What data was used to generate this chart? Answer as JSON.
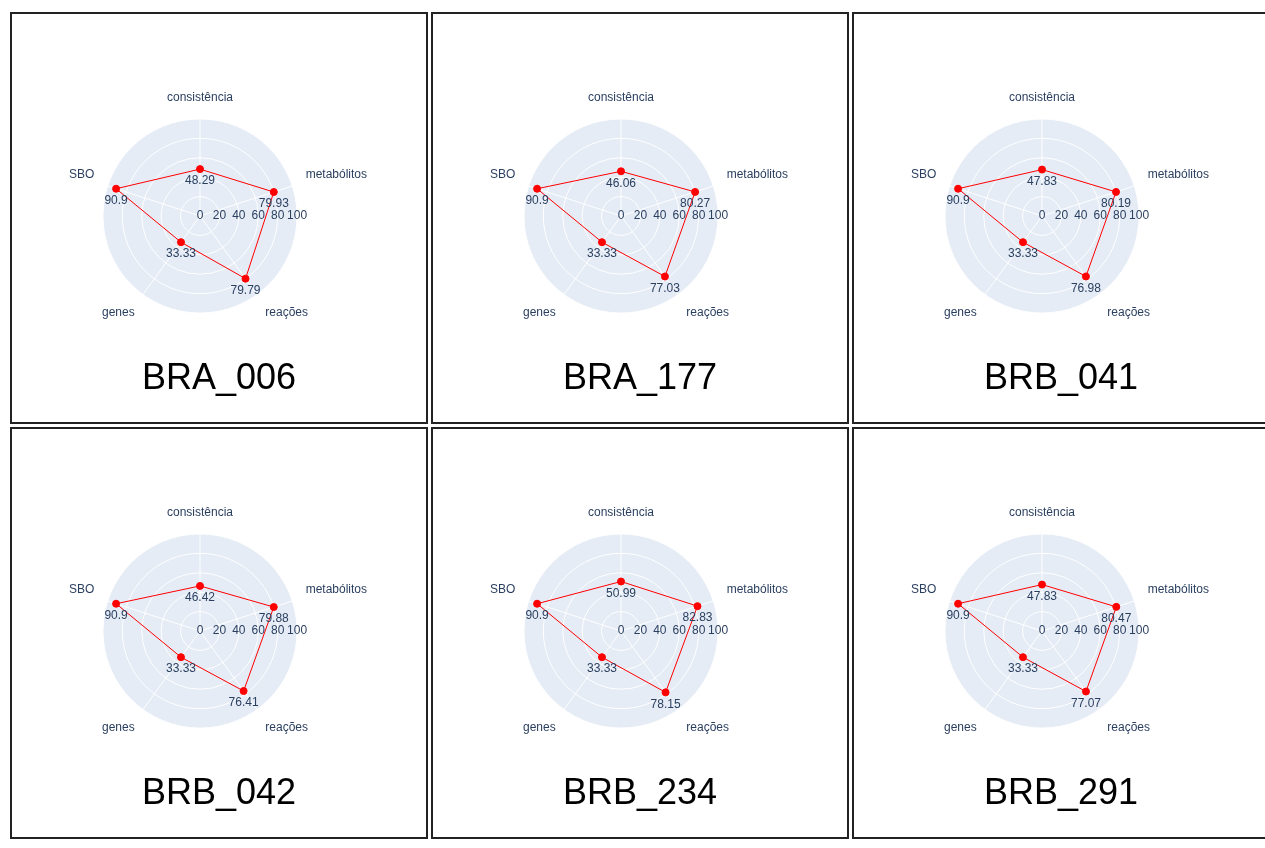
{
  "chart_data": [
    {
      "type": "radar",
      "title": "BRA_006",
      "categories": [
        "consistência",
        "metabólitos",
        "reações",
        "genes",
        "SBO"
      ],
      "series": [
        {
          "color": "#ff0000",
          "values": [
            48.29,
            79.93,
            79.79,
            33.33,
            90.9
          ]
        }
      ],
      "ylim": [
        0,
        100
      ],
      "yticks": [
        0,
        20,
        40,
        60,
        80,
        100
      ],
      "grid": true,
      "marker": "circle",
      "data_labels": true
    },
    {
      "type": "radar",
      "title": "BRA_177",
      "categories": [
        "consistência",
        "metabólitos",
        "reações",
        "genes",
        "SBO"
      ],
      "series": [
        {
          "color": "#ff0000",
          "values": [
            46.06,
            80.27,
            77.03,
            33.33,
            90.9
          ]
        }
      ],
      "ylim": [
        0,
        100
      ],
      "yticks": [
        0,
        20,
        40,
        60,
        80,
        100
      ],
      "grid": true,
      "marker": "circle",
      "data_labels": true
    },
    {
      "type": "radar",
      "title": "BRB_041",
      "categories": [
        "consistência",
        "metabólitos",
        "reações",
        "genes",
        "SBO"
      ],
      "series": [
        {
          "color": "#ff0000",
          "values": [
            47.83,
            80.19,
            76.98,
            33.33,
            90.9
          ]
        }
      ],
      "ylim": [
        0,
        100
      ],
      "yticks": [
        0,
        20,
        40,
        60,
        80,
        100
      ],
      "grid": true,
      "marker": "circle",
      "data_labels": true
    },
    {
      "type": "radar",
      "title": "BRB_042",
      "categories": [
        "consistência",
        "metabólitos",
        "reações",
        "genes",
        "SBO"
      ],
      "series": [
        {
          "color": "#ff0000",
          "values": [
            46.42,
            79.88,
            76.41,
            33.33,
            90.9
          ]
        }
      ],
      "ylim": [
        0,
        100
      ],
      "yticks": [
        0,
        20,
        40,
        60,
        80,
        100
      ],
      "grid": true,
      "marker": "circle",
      "data_labels": true
    },
    {
      "type": "radar",
      "title": "BRB_234",
      "categories": [
        "consistência",
        "metabólitos",
        "reações",
        "genes",
        "SBO"
      ],
      "series": [
        {
          "color": "#ff0000",
          "values": [
            50.99,
            82.83,
            78.15,
            33.33,
            90.9
          ]
        }
      ],
      "ylim": [
        0,
        100
      ],
      "yticks": [
        0,
        20,
        40,
        60,
        80,
        100
      ],
      "grid": true,
      "marker": "circle",
      "data_labels": true
    },
    {
      "type": "radar",
      "title": "BRB_291",
      "categories": [
        "consistência",
        "metabólitos",
        "reações",
        "genes",
        "SBO"
      ],
      "series": [
        {
          "color": "#ff0000",
          "values": [
            47.83,
            80.47,
            77.07,
            33.33,
            90.9
          ]
        }
      ],
      "ylim": [
        0,
        100
      ],
      "yticks": [
        0,
        20,
        40,
        60,
        80,
        100
      ],
      "grid": true,
      "marker": "circle",
      "data_labels": true
    }
  ]
}
